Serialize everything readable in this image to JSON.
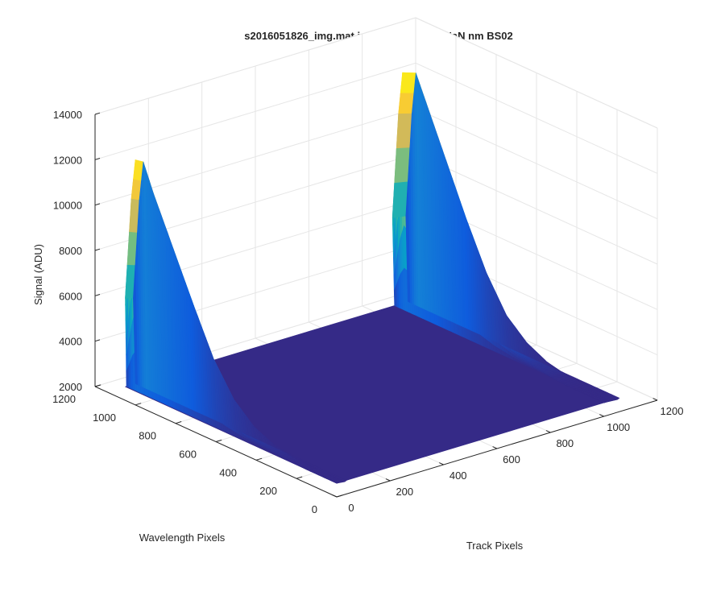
{
  "figure": {
    "title": "s2016051826_img.mat int time = 0.2 sec  NaN nm BS02"
  },
  "chart_data": {
    "type": "surface",
    "title": "s2016051826_img.mat int time = 0.2 sec  NaN nm BS02",
    "xlabel": "Track Pixels",
    "ylabel": "Wavelength Pixels",
    "zlabel": "Signal (ADU)",
    "xlim": [
      0,
      1200
    ],
    "ylim": [
      0,
      1200
    ],
    "zlim": [
      2000,
      14000
    ],
    "xticks": [
      "0",
      "200",
      "400",
      "600",
      "800",
      "1000",
      "1200"
    ],
    "yticks": [
      "0",
      "200",
      "400",
      "600",
      "800",
      "1000",
      "1200"
    ],
    "zticks": [
      "2000",
      "4000",
      "6000",
      "8000",
      "10000",
      "12000",
      "14000"
    ],
    "grid": true,
    "colormap": "parula",
    "baseline": 2600,
    "data_extent": {
      "track_pixels": [
        0,
        1050
      ],
      "wavelength_pixels": [
        0,
        1050
      ]
    },
    "peaks": [
      {
        "track_pixel_range": [
          0,
          30
        ],
        "peak_signal": 12800,
        "peak_wavelength_pixel": 1000,
        "profile": [
          [
            1050,
            6500
          ],
          [
            1020,
            11000
          ],
          [
            1000,
            12800
          ],
          [
            950,
            11600
          ],
          [
            850,
            9500
          ],
          [
            750,
            7400
          ],
          [
            650,
            5400
          ],
          [
            550,
            4000
          ],
          [
            450,
            3200
          ],
          [
            350,
            2800
          ],
          [
            250,
            2650
          ],
          [
            150,
            2600
          ],
          [
            0,
            2600
          ]
        ]
      },
      {
        "track_pixel_range": [
          1000,
          1050
        ],
        "peak_signal": 13100,
        "peak_wavelength_pixel": 1000,
        "profile": [
          [
            1050,
            6500
          ],
          [
            1020,
            11200
          ],
          [
            1000,
            13100
          ],
          [
            950,
            12000
          ],
          [
            850,
            9800
          ],
          [
            750,
            7600
          ],
          [
            650,
            5600
          ],
          [
            550,
            4100
          ],
          [
            450,
            3300
          ],
          [
            350,
            2850
          ],
          [
            250,
            2650
          ],
          [
            150,
            2600
          ],
          [
            0,
            2600
          ]
        ]
      }
    ]
  }
}
